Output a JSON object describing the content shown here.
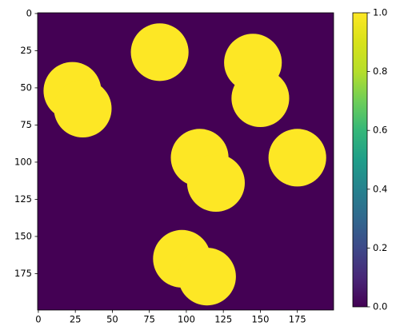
{
  "chart_data": {
    "type": "image",
    "background_value": 0,
    "circles": [
      {
        "x": 82,
        "y": 26,
        "r": 19.5,
        "value": 1
      },
      {
        "x": 145,
        "y": 33,
        "r": 19.5,
        "value": 1
      },
      {
        "x": 150,
        "y": 57,
        "r": 19.5,
        "value": 1
      },
      {
        "x": 23,
        "y": 52,
        "r": 19.5,
        "value": 1
      },
      {
        "x": 30,
        "y": 64,
        "r": 19.5,
        "value": 1
      },
      {
        "x": 175,
        "y": 97,
        "r": 19.5,
        "value": 1
      },
      {
        "x": 109,
        "y": 97,
        "r": 19.5,
        "value": 1
      },
      {
        "x": 120,
        "y": 114,
        "r": 19.5,
        "value": 1
      },
      {
        "x": 97,
        "y": 165,
        "r": 19.5,
        "value": 1
      },
      {
        "x": 114,
        "y": 177,
        "r": 19.5,
        "value": 1
      }
    ],
    "xlim": [
      -0.5,
      199.5
    ],
    "ylim": [
      199.5,
      -0.5
    ],
    "xticks": [
      0,
      25,
      50,
      75,
      100,
      125,
      150,
      175
    ],
    "yticks": [
      0,
      25,
      50,
      75,
      100,
      125,
      150,
      175
    ],
    "clim": [
      0,
      1
    ],
    "cticks": [
      {
        "value": 0,
        "label": "0.0"
      },
      {
        "value": 0.2,
        "label": "0.2"
      },
      {
        "value": 0.4,
        "label": "0.4"
      },
      {
        "value": 0.6,
        "label": "0.6"
      },
      {
        "value": 0.8,
        "label": "0.8"
      },
      {
        "value": 1,
        "label": "1.0"
      }
    ],
    "low_color": "#440154",
    "high_color": "#fde725"
  }
}
